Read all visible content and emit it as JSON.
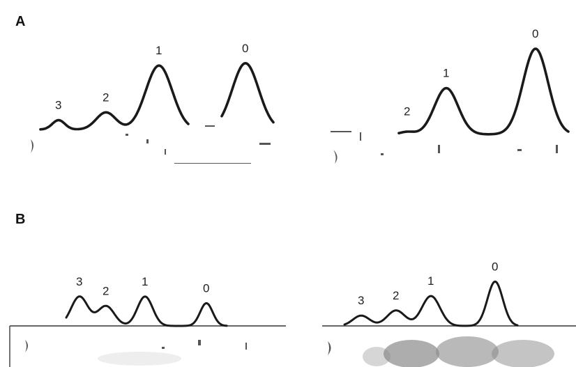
{
  "chart_data": [
    {
      "type": "line",
      "panel": "A",
      "trace": "left",
      "peaks": [
        {
          "label": "3",
          "height": 0.12
        },
        {
          "label": "2",
          "height": 0.22
        },
        {
          "label": "1",
          "height": 0.82
        },
        {
          "label": "0",
          "height": 0.85
        }
      ]
    },
    {
      "type": "line",
      "panel": "A",
      "trace": "right",
      "peaks": [
        {
          "label": "2",
          "height": 0.03
        },
        {
          "label": "1",
          "height": 0.54
        },
        {
          "label": "0",
          "height": 1.0
        }
      ]
    },
    {
      "type": "line",
      "panel": "B",
      "trace": "left",
      "peaks": [
        {
          "label": "3",
          "height": 0.62
        },
        {
          "label": "2",
          "height": 0.42
        },
        {
          "label": "1",
          "height": 0.62
        },
        {
          "label": "0",
          "height": 0.48
        }
      ]
    },
    {
      "type": "line",
      "panel": "B",
      "trace": "right",
      "peaks": [
        {
          "label": "3",
          "height": 0.2
        },
        {
          "label": "2",
          "height": 0.3
        },
        {
          "label": "1",
          "height": 0.58
        },
        {
          "label": "0",
          "height": 0.86
        }
      ]
    }
  ],
  "panels": {
    "A": {
      "label": "A"
    },
    "B": {
      "label": "B"
    }
  },
  "colors": {
    "trace": "#1a1a1a",
    "background": "#ffffff"
  }
}
